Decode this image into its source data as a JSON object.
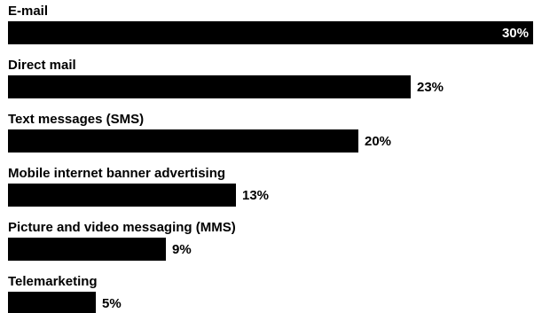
{
  "chart_data": {
    "type": "bar",
    "orientation": "horizontal",
    "categories": [
      "E-mail",
      "Direct mail",
      "Text messages (SMS)",
      "Mobile internet banner advertising",
      "Picture and video messaging (MMS)",
      "Telemarketing"
    ],
    "values": [
      30,
      23,
      20,
      13,
      9,
      5
    ],
    "value_labels": [
      "30%",
      "23%",
      "20%",
      "13%",
      "9%",
      "5%"
    ],
    "unit": "%",
    "xlim": [
      0,
      30
    ],
    "grid": false,
    "legend": "none",
    "bar_color": "#000000",
    "label_color_inside": "#ffffff",
    "label_color_outside": "#000000"
  }
}
